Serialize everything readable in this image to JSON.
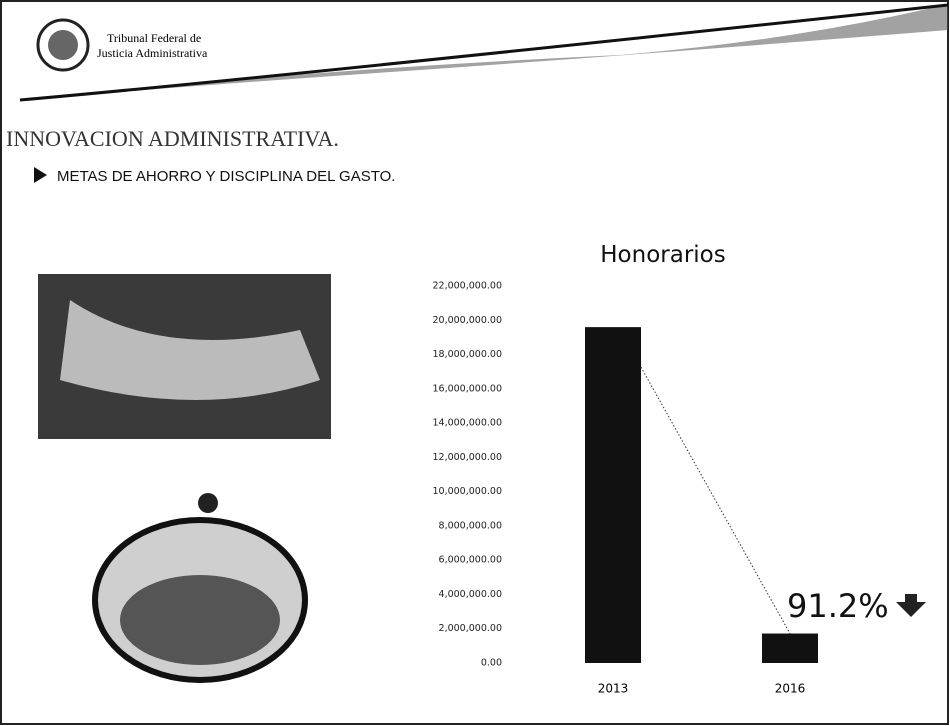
{
  "header": {
    "org_line1": "Tribunal Federal de",
    "org_line2": "Justicia Administrativa"
  },
  "section_title": "INNOVACION ADMINISTRATIVA.",
  "bullet": "METAS DE AHORRO Y DISCIPLINA DEL GASTO.",
  "chart_data": {
    "type": "bar",
    "title": "Honorarios",
    "categories": [
      "2013",
      "2016"
    ],
    "values": [
      19600000,
      1720000
    ],
    "color": "#111111",
    "ylim": [
      0,
      22000000
    ],
    "yticks": [
      {
        "value": 0,
        "label": "0.00"
      },
      {
        "value": 2000000,
        "label": "2,000,000.00"
      },
      {
        "value": 4000000,
        "label": "4,000,000.00"
      },
      {
        "value": 6000000,
        "label": "6,000,000.00"
      },
      {
        "value": 8000000,
        "label": "8,000,000.00"
      },
      {
        "value": 10000000,
        "label": "10,000,000.00"
      },
      {
        "value": 12000000,
        "label": "12,000,000.00"
      },
      {
        "value": 14000000,
        "label": "14,000,000.00"
      },
      {
        "value": 16000000,
        "label": "16,000,000.00"
      },
      {
        "value": 18000000,
        "label": "18,000,000.00"
      },
      {
        "value": 20000000,
        "label": "20,000,000.00"
      },
      {
        "value": 22000000,
        "label": "22,000,000.00"
      }
    ],
    "grid": false,
    "annotation": "91.2%"
  }
}
